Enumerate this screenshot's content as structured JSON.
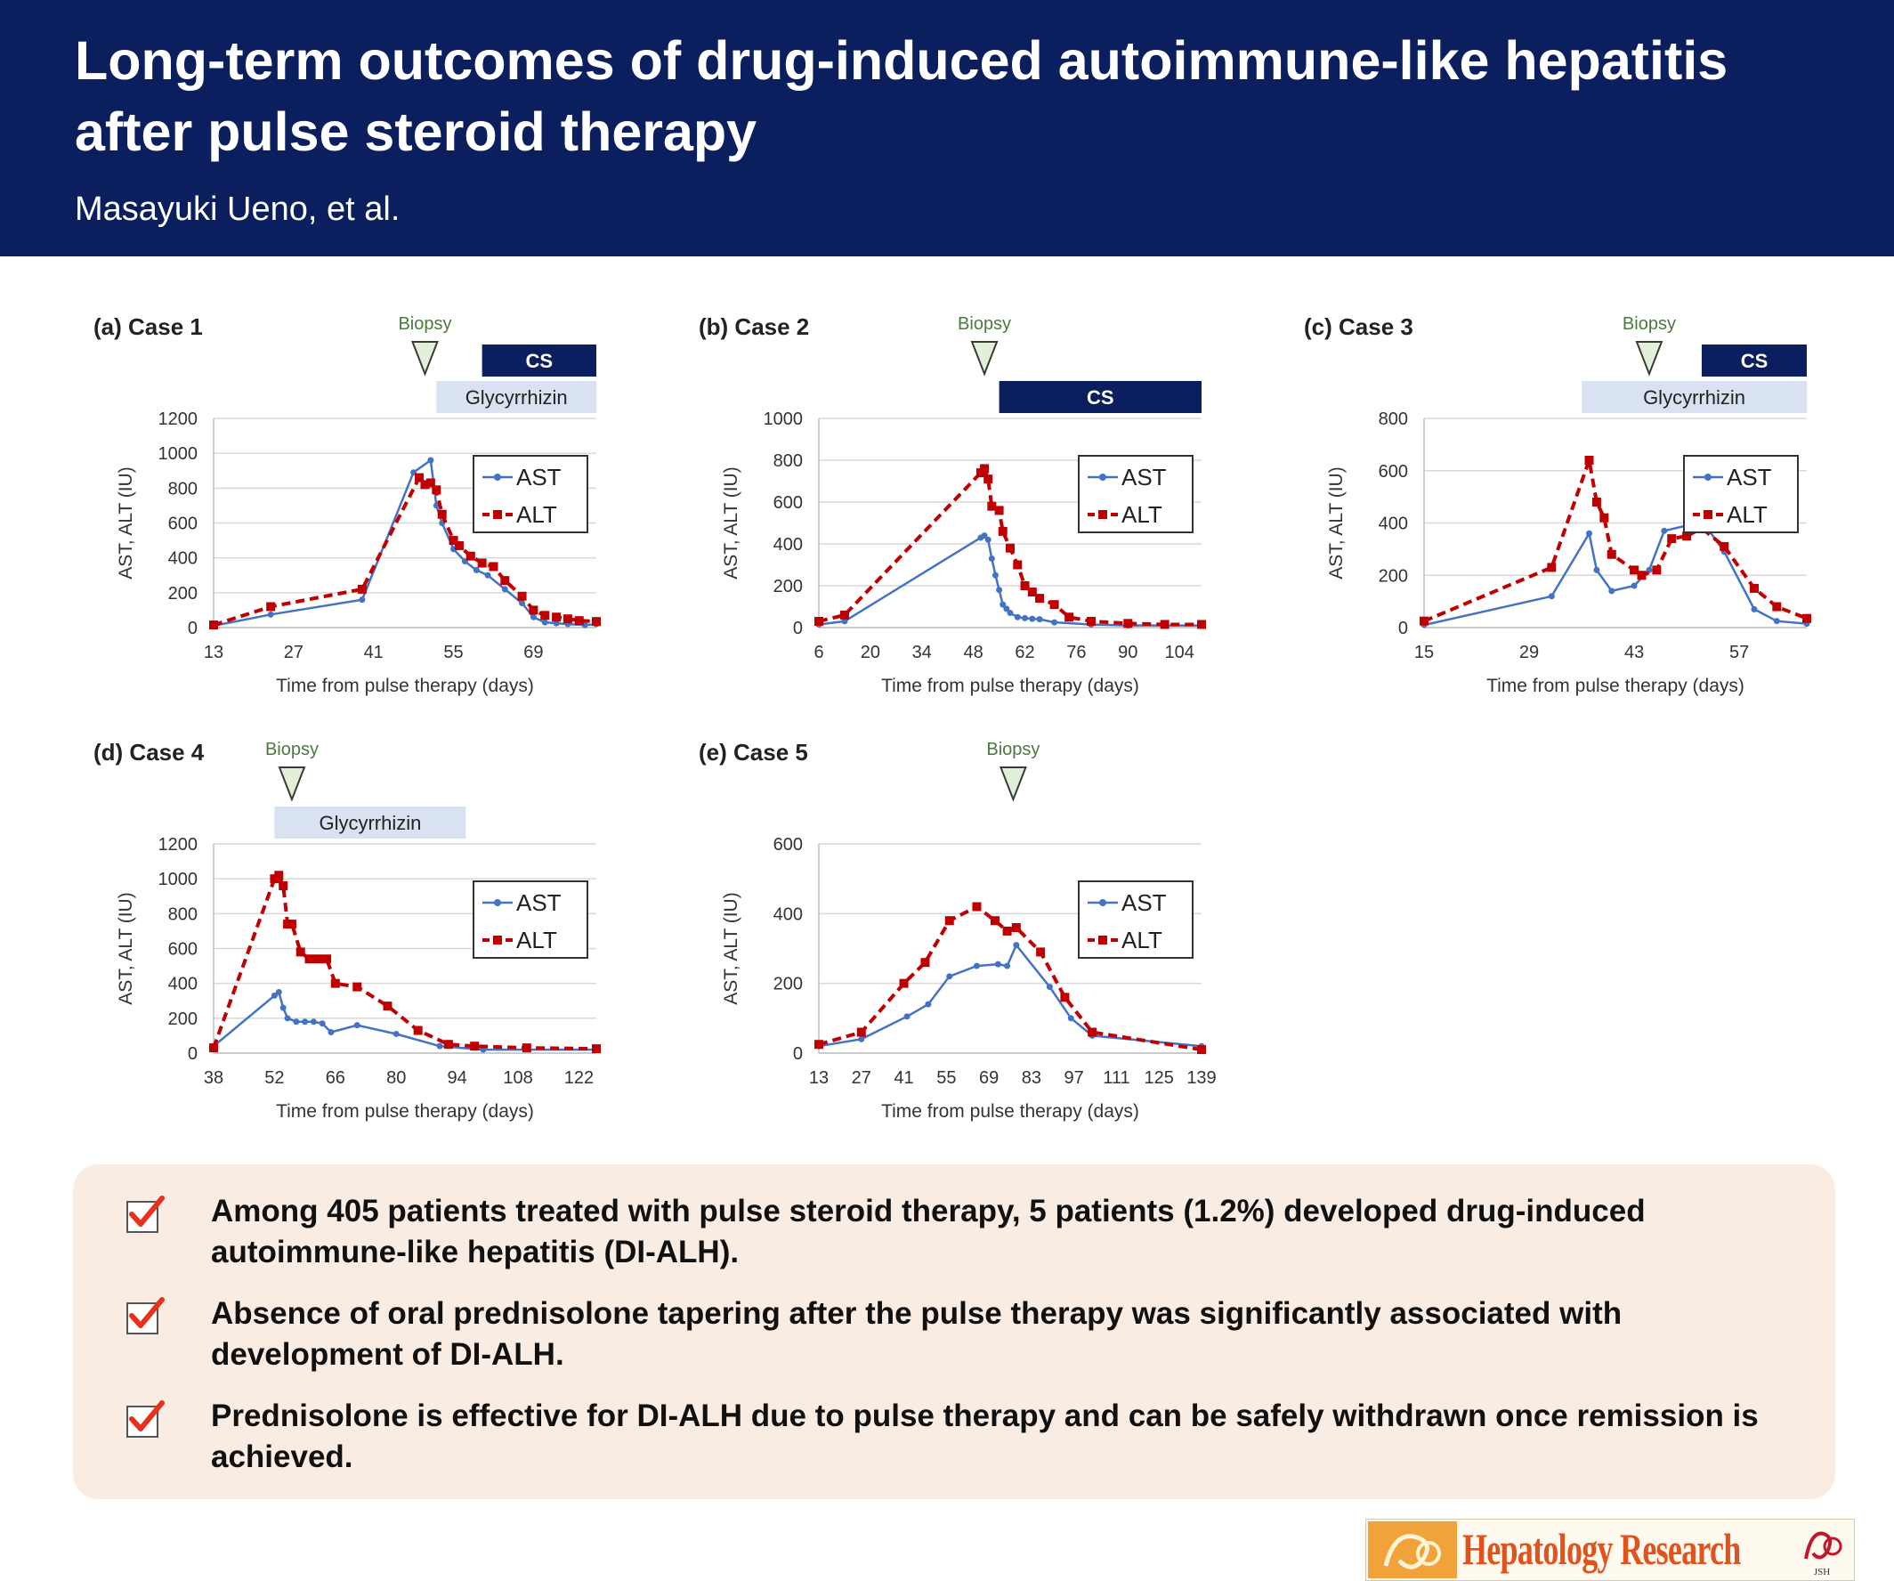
{
  "header": {
    "title": "Long-term outcomes of drug-induced autoimmune-like hepatitis after pulse steroid therapy",
    "authors": "Masayuki Ueno, et al."
  },
  "colors": {
    "header_bg": "#0b1f5f",
    "ast": "#4472c4",
    "alt": "#c00000",
    "cs_bar": "#0b1f5f",
    "glycyrrhizin_bar": "#d9e2f1",
    "summary_bg": "#f9ece3",
    "check": "#e8301c"
  },
  "chart_data": [
    {
      "id": "a",
      "type": "line",
      "title": "(a) Case 1",
      "xlabel": "Time from pulse therapy (days)",
      "ylabel": "AST, ALT (IU)",
      "xlim": [
        13,
        80
      ],
      "ylim": [
        0,
        1200
      ],
      "xticks": [
        13,
        27,
        41,
        55,
        69
      ],
      "yticks": [
        0,
        200,
        400,
        600,
        800,
        1000,
        1200
      ],
      "grid": true,
      "legend": "top-right",
      "biopsy": {
        "label": "Biopsy",
        "day": 50
      },
      "bars": [
        {
          "label": "CS",
          "start": 60,
          "end": 80,
          "row": 0,
          "style": "dark"
        },
        {
          "label": "Glycyrrhizin",
          "start": 52,
          "end": 80,
          "row": 1,
          "style": "light"
        }
      ],
      "series": [
        {
          "name": "AST",
          "style": "solid",
          "x": [
            13,
            23,
            39,
            48,
            51,
            52,
            53,
            55,
            57,
            59,
            61,
            64,
            67,
            69,
            71,
            73,
            75,
            78,
            80
          ],
          "y": [
            10,
            75,
            160,
            890,
            960,
            700,
            600,
            450,
            380,
            330,
            300,
            220,
            140,
            60,
            30,
            25,
            20,
            15,
            20
          ]
        },
        {
          "name": "ALT",
          "style": "dashed",
          "x": [
            13,
            23,
            39,
            49,
            50,
            51,
            52,
            53,
            55,
            56,
            58,
            60,
            62,
            64,
            67,
            69,
            71,
            73,
            75,
            77,
            80
          ],
          "y": [
            15,
            120,
            220,
            860,
            820,
            830,
            790,
            650,
            500,
            470,
            410,
            370,
            350,
            270,
            180,
            100,
            70,
            60,
            50,
            40,
            35
          ]
        }
      ]
    },
    {
      "id": "b",
      "type": "line",
      "title": "(b) Case 2",
      "xlabel": "Time from pulse therapy (days)",
      "ylabel": "AST, ALT (IU)",
      "xlim": [
        6,
        110
      ],
      "ylim": [
        0,
        1000
      ],
      "xticks": [
        6,
        20,
        34,
        48,
        62,
        76,
        90,
        104
      ],
      "yticks": [
        0,
        200,
        400,
        600,
        800,
        1000
      ],
      "grid": true,
      "legend": "top-right",
      "biopsy": {
        "label": "Biopsy",
        "day": 51
      },
      "bars": [
        {
          "label": "CS",
          "start": 55,
          "end": 110,
          "row": 1,
          "style": "dark"
        }
      ],
      "series": [
        {
          "name": "AST",
          "style": "solid",
          "x": [
            6,
            13,
            50,
            51,
            52,
            53,
            54,
            55,
            56,
            57,
            58,
            60,
            62,
            64,
            66,
            70,
            80,
            90,
            100,
            110
          ],
          "y": [
            15,
            30,
            430,
            440,
            420,
            330,
            250,
            180,
            110,
            90,
            70,
            50,
            45,
            42,
            40,
            25,
            15,
            10,
            10,
            10
          ]
        },
        {
          "name": "ALT",
          "style": "dashed",
          "x": [
            6,
            13,
            50,
            51,
            52,
            53,
            55,
            56,
            58,
            60,
            62,
            64,
            66,
            70,
            74,
            80,
            90,
            100,
            110
          ],
          "y": [
            30,
            60,
            740,
            760,
            710,
            580,
            560,
            460,
            380,
            300,
            200,
            170,
            140,
            110,
            50,
            30,
            20,
            15,
            15
          ]
        }
      ]
    },
    {
      "id": "c",
      "type": "line",
      "title": "(c) Case 3",
      "xlabel": "Time from pulse therapy (days)",
      "ylabel": "AST, ALT (IU)",
      "xlim": [
        15,
        66
      ],
      "ylim": [
        0,
        800
      ],
      "xticks": [
        15,
        29,
        43,
        57
      ],
      "yticks": [
        0,
        200,
        400,
        600,
        800
      ],
      "grid": true,
      "legend": "top-right",
      "biopsy": {
        "label": "Biopsy",
        "day": 45
      },
      "bars": [
        {
          "label": "CS",
          "start": 52,
          "end": 66,
          "row": 0,
          "style": "dark"
        },
        {
          "label": "Glycyrrhizin",
          "start": 36,
          "end": 66,
          "row": 1,
          "style": "light"
        }
      ],
      "series": [
        {
          "name": "AST",
          "style": "solid",
          "x": [
            15,
            32,
            37,
            38,
            40,
            43,
            45,
            47,
            50,
            52,
            55,
            59,
            62,
            66
          ],
          "y": [
            10,
            120,
            360,
            220,
            140,
            160,
            220,
            370,
            390,
            410,
            290,
            70,
            25,
            15
          ]
        },
        {
          "name": "ALT",
          "style": "dashed",
          "x": [
            15,
            32,
            37,
            38,
            39,
            40,
            43,
            44,
            46,
            48,
            50,
            52,
            55,
            59,
            62,
            66
          ],
          "y": [
            25,
            230,
            640,
            480,
            420,
            280,
            220,
            200,
            220,
            340,
            350,
            380,
            310,
            150,
            80,
            35
          ]
        }
      ]
    },
    {
      "id": "d",
      "type": "line",
      "title": "(d) Case 4",
      "xlabel": "Time from pulse therapy (days)",
      "ylabel": "AST, ALT (IU)",
      "xlim": [
        38,
        126
      ],
      "ylim": [
        0,
        1200
      ],
      "xticks": [
        38,
        52,
        66,
        80,
        94,
        108,
        122
      ],
      "yticks": [
        0,
        200,
        400,
        600,
        800,
        1000,
        1200
      ],
      "grid": true,
      "legend": "top-right",
      "biopsy": {
        "label": "Biopsy",
        "day": 56
      },
      "bars": [
        {
          "label": "Glycyrrhizin",
          "start": 52,
          "end": 96,
          "row": 1,
          "style": "light"
        }
      ],
      "series": [
        {
          "name": "AST",
          "style": "solid",
          "x": [
            38,
            52,
            53,
            54,
            55,
            57,
            59,
            61,
            63,
            65,
            71,
            80,
            90,
            100,
            126
          ],
          "y": [
            40,
            330,
            350,
            260,
            200,
            180,
            180,
            180,
            170,
            120,
            160,
            110,
            40,
            20,
            20
          ]
        },
        {
          "name": "ALT",
          "style": "dashed",
          "x": [
            38,
            52,
            53,
            54,
            55,
            56,
            58,
            60,
            62,
            64,
            66,
            71,
            78,
            85,
            92,
            98,
            110,
            126
          ],
          "y": [
            30,
            1000,
            1020,
            960,
            740,
            740,
            580,
            540,
            540,
            540,
            400,
            380,
            270,
            130,
            50,
            40,
            30,
            25
          ]
        }
      ]
    },
    {
      "id": "e",
      "type": "line",
      "title": "(e) Case 5",
      "xlabel": "Time from pulse therapy (days)",
      "ylabel": "AST, ALT (IU)",
      "xlim": [
        13,
        139
      ],
      "ylim": [
        0,
        600
      ],
      "xticks": [
        13,
        27,
        41,
        55,
        69,
        83,
        97,
        111,
        125,
        139
      ],
      "yticks": [
        0,
        200,
        400,
        600
      ],
      "grid": true,
      "legend": "top-right",
      "biopsy": {
        "label": "Biopsy",
        "day": 77
      },
      "bars": [],
      "series": [
        {
          "name": "AST",
          "style": "solid",
          "x": [
            13,
            27,
            42,
            49,
            56,
            65,
            72,
            75,
            78,
            89,
            96,
            103,
            139
          ],
          "y": [
            20,
            40,
            105,
            140,
            220,
            250,
            255,
            250,
            310,
            190,
            100,
            50,
            20
          ]
        },
        {
          "name": "ALT",
          "style": "dashed",
          "x": [
            13,
            27,
            41,
            48,
            56,
            65,
            71,
            75,
            78,
            86,
            94,
            103,
            139
          ],
          "y": [
            25,
            60,
            200,
            260,
            380,
            420,
            380,
            350,
            360,
            290,
            160,
            60,
            10
          ]
        }
      ]
    }
  ],
  "summary": {
    "items": [
      "Among 405 patients treated with pulse steroid therapy, 5 patients (1.2%) developed drug-induced autoimmune-like hepatitis (DI-ALH).",
      "Absence of oral prednisolone tapering after the pulse therapy was significantly associated with development of DI-ALH.",
      "Prednisolone is effective for DI-ALH due to pulse therapy and can be safely withdrawn once remission is achieved."
    ]
  },
  "logo": {
    "text": "Hepatology Research",
    "emblem_caption": "JSH",
    "icon": "hepatology-research-logo-icon"
  }
}
